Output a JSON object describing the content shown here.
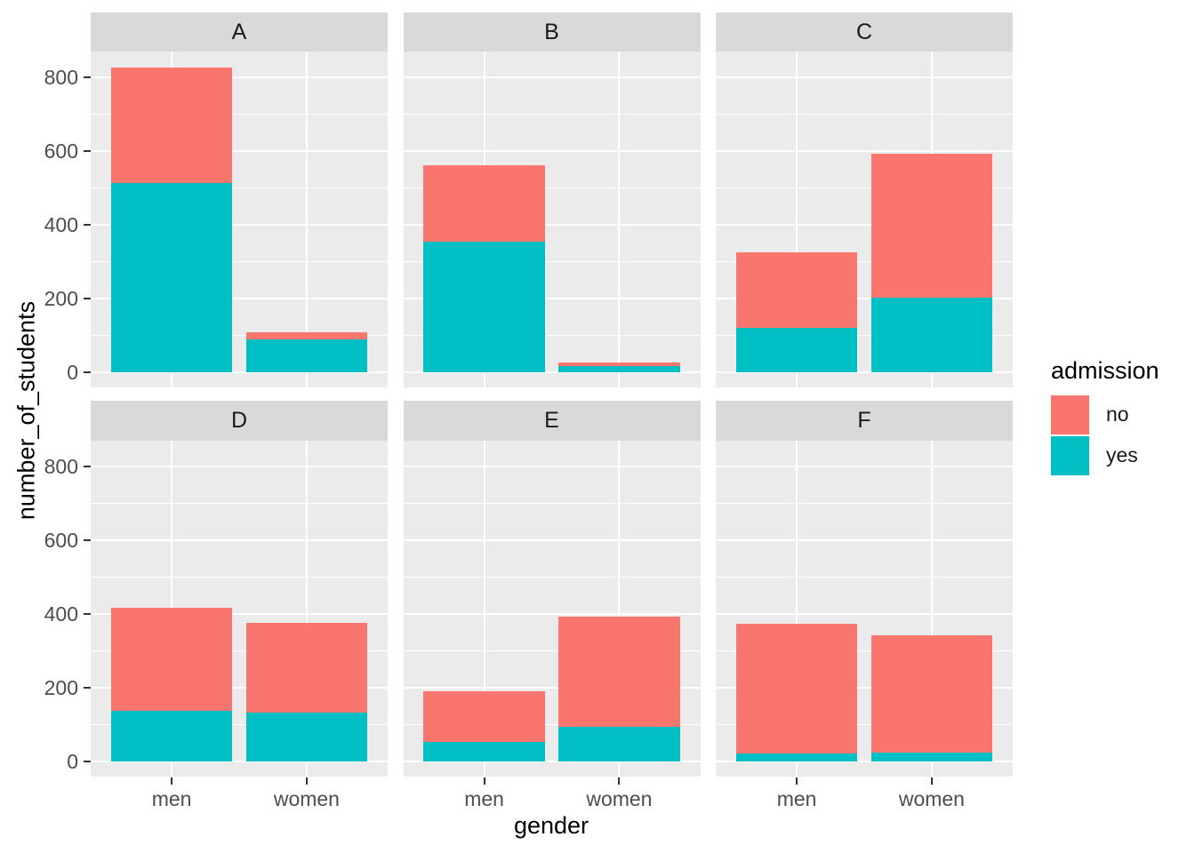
{
  "chart_data": {
    "type": "bar",
    "subtype": "stacked",
    "faceted": true,
    "facets": [
      "A",
      "B",
      "C",
      "D",
      "E",
      "F"
    ],
    "facet_layout": {
      "rows": 2,
      "cols": 3
    },
    "categories": [
      "men",
      "women"
    ],
    "series": [
      {
        "name": "no",
        "color": "#F8766D",
        "values": {
          "A": [
            313,
            19
          ],
          "B": [
            207,
            8
          ],
          "C": [
            205,
            391
          ],
          "D": [
            279,
            244
          ],
          "E": [
            138,
            299
          ],
          "F": [
            351,
            317
          ]
        }
      },
      {
        "name": "yes",
        "color": "#00BFC4",
        "values": {
          "A": [
            512,
            89
          ],
          "B": [
            353,
            17
          ],
          "C": [
            120,
            202
          ],
          "D": [
            138,
            131
          ],
          "E": [
            53,
            94
          ],
          "F": [
            22,
            24
          ]
        }
      }
    ],
    "stack_order_bottom_to_top": [
      "yes",
      "no"
    ],
    "title": "",
    "xlabel": "gender",
    "ylabel": "number_of_students",
    "legend_title": "admission",
    "legend_position": "right",
    "y_ticks": [
      0,
      200,
      400,
      600,
      800
    ],
    "y_minor_gridlines": [
      100,
      300,
      500,
      700
    ],
    "ylim": [
      0,
      828
    ],
    "grid": true,
    "theme": {
      "panel_bg": "#EBEBEB",
      "strip_bg": "#D9D9D9",
      "grid_color": "#FFFFFF",
      "tick_mark_color": "#333333",
      "tick_label_color": "#4D4D4D",
      "strip_text_color": "#1A1A1A",
      "axis_title_color": "#000000"
    }
  }
}
